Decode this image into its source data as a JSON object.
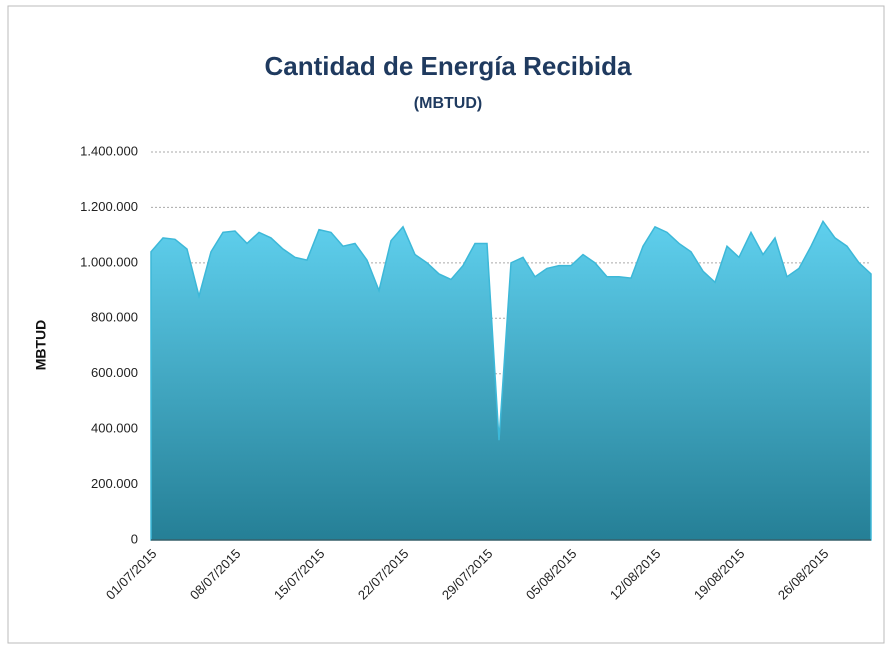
{
  "chart_data": {
    "type": "area",
    "title": "Cantidad de Energía Recibida",
    "subtitle": "(MBTUD)",
    "y_label": "MBTUD",
    "color": "#3db8d8",
    "grid": true,
    "categories": [
      "01/07/2015",
      null,
      null,
      null,
      null,
      null,
      null,
      "08/07/2015",
      null,
      null,
      null,
      null,
      null,
      null,
      "15/07/2015",
      null,
      null,
      null,
      null,
      null,
      null,
      "22/07/2015",
      null,
      null,
      null,
      null,
      null,
      null,
      "29/07/2015",
      null,
      null,
      null,
      null,
      null,
      null,
      "05/08/2015",
      null,
      null,
      null,
      null,
      null,
      null,
      "12/08/2015",
      null,
      null,
      null,
      null,
      null,
      null,
      "19/08/2015",
      null,
      null,
      null,
      null,
      null,
      null,
      "26/08/2015",
      null,
      null,
      null,
      null
    ],
    "values": [
      1040000,
      1090000,
      1085000,
      1050000,
      880000,
      1040000,
      1110000,
      1115000,
      1070000,
      1110000,
      1090000,
      1050000,
      1020000,
      1010000,
      1120000,
      1110000,
      1060000,
      1070000,
      1010000,
      900000,
      1080000,
      1130000,
      1030000,
      1000000,
      960000,
      940000,
      990000,
      1070000,
      1070000,
      360000,
      1000000,
      1020000,
      950000,
      980000,
      990000,
      990000,
      1030000,
      1000000,
      950000,
      950000,
      945000,
      1060000,
      1130000,
      1110000,
      1070000,
      1040000,
      970000,
      930000,
      1060000,
      1020000,
      1110000,
      1030000,
      1090000,
      950000,
      980000,
      1060000,
      1150000,
      1090000,
      1060000,
      1000000,
      960000
    ],
    "ylim": [
      0,
      1400000
    ],
    "yticks": [
      0,
      {
        "value": 200000,
        "label": "200.000"
      },
      {
        "value": 400000,
        "label": "400.000"
      },
      {
        "value": 600000,
        "label": "600.000"
      },
      {
        "value": 800000,
        "label": "800.000"
      },
      {
        "value": 1000000,
        "label": "1.000.000"
      },
      {
        "value": 1200000,
        "label": "1.200.000"
      },
      {
        "value": 1400000,
        "label": "1.400.000"
      }
    ]
  }
}
